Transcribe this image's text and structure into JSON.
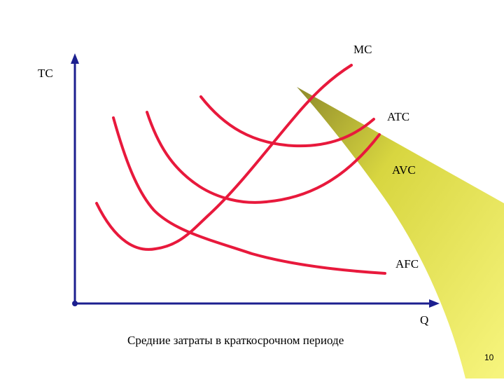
{
  "labels": {
    "y_axis": "TC",
    "x_axis": "Q",
    "mc": "MC",
    "atc": "ATC",
    "avc": "AVC",
    "afc": "AFC"
  },
  "caption": "Средние затраты в краткосрочном периоде",
  "page_number": "10",
  "colors": {
    "curve": "#e8193c",
    "axis": "#1c1f8f",
    "wedge_light": "#f4f27a",
    "wedge_dark": "#b3b33a"
  }
}
